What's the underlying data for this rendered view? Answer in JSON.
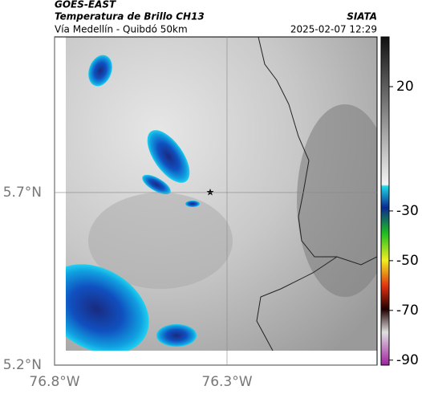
{
  "header": {
    "source": "GOES-EAST",
    "title": "Temperatura de Brillo CH13",
    "brand": "SIATA",
    "subtitle": "Vía Medellín - Quibdó 50km",
    "timestamp": "2025-02-07 12:29"
  },
  "map": {
    "xlim": [
      -76.8,
      -75.865
    ],
    "ylim": [
      5.2,
      6.151
    ],
    "xticks": [
      {
        "value": -76.8,
        "label": "76.8°W"
      },
      {
        "value": -76.3,
        "label": "76.3°W"
      }
    ],
    "yticks": [
      {
        "value": 5.2,
        "label": "5.2°N"
      },
      {
        "value": 5.7,
        "label": "5.7°N"
      }
    ]
  },
  "colorbar": {
    "range": [
      -92,
      40
    ],
    "ticks": [
      20,
      -30,
      -50,
      -70,
      -90
    ]
  }
}
